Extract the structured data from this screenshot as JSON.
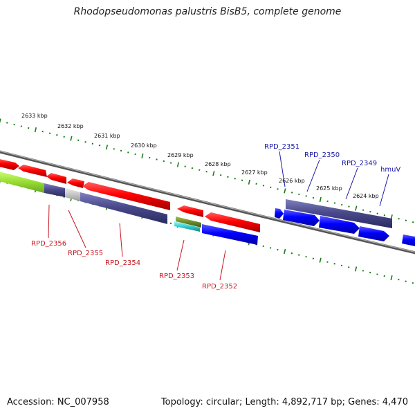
{
  "header": {
    "title": "Rhodopseudomonas palustris BisB5, complete genome"
  },
  "footer": {
    "accession": "Accession: NC_007958",
    "summary": "Topology: circular; Length: 4,892,717 bp; Genes: 4,470"
  },
  "map": {
    "tick_labels": [
      "2633 kbp",
      "2632 kbp",
      "2631 kbp",
      "2630 kbp",
      "2629 kbp",
      "2628 kbp",
      "2627 kbp",
      "2626 kbp",
      "2625 kbp",
      "2624 kbp"
    ],
    "genes_reverse": [
      {
        "label": "RPD_2356",
        "color": "#c8141e"
      },
      {
        "label": "RPD_2355",
        "color": "#c8141e"
      },
      {
        "label": "RPD_2354",
        "color": "#c8141e"
      },
      {
        "label": "RPD_2353",
        "color": "#c8141e"
      },
      {
        "label": "RPD_2352",
        "color": "#c8141e"
      }
    ],
    "genes_forward": [
      {
        "label": "RPD_2351",
        "color": "#1a1aa8"
      },
      {
        "label": "RPD_2350",
        "color": "#1a1aa8"
      },
      {
        "label": "RPD_2349",
        "color": "#1a1aa8"
      },
      {
        "label": "hmuV",
        "color": "#1a1aa8"
      }
    ],
    "colors": {
      "reverse_strand": "#ff0000",
      "forward_strand": "#0000ff",
      "cog_purple": "#4a4a8c",
      "lime": "#99dd33",
      "ticks": "#1a7a1a",
      "backbone": "#808080"
    }
  }
}
